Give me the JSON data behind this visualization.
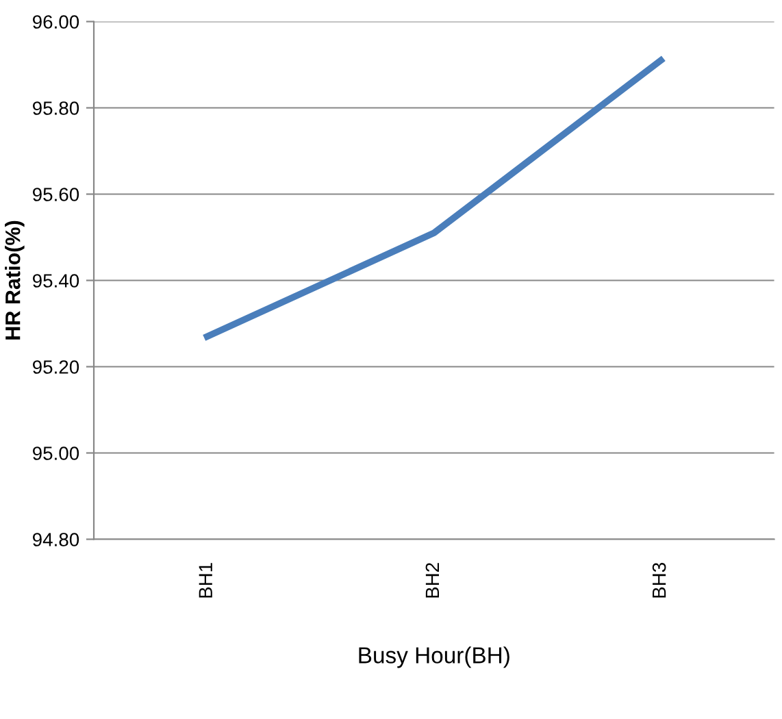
{
  "chart_data": {
    "type": "line",
    "xlabel": "Busy Hour(BH)",
    "ylabel": "HR Ratio(%)",
    "categories": [
      "BH1",
      "BH2",
      "BH3"
    ],
    "series": [
      {
        "color": "#4a7ebb",
        "values": [
          95.27,
          95.51,
          95.91
        ]
      }
    ],
    "ylim": [
      94.8,
      96.0
    ],
    "yticks": [
      {
        "value": 94.8,
        "label": "94.80"
      },
      {
        "value": 95.0,
        "label": "95.00"
      },
      {
        "value": 95.2,
        "label": "95.20"
      },
      {
        "value": 95.4,
        "label": "95.40"
      },
      {
        "value": 95.6,
        "label": "95.60"
      },
      {
        "value": 95.8,
        "label": "95.80"
      },
      {
        "value": 96.0,
        "label": "96.00"
      }
    ],
    "grid": "y",
    "legend": false,
    "marker": "none",
    "line_style": "solid"
  }
}
